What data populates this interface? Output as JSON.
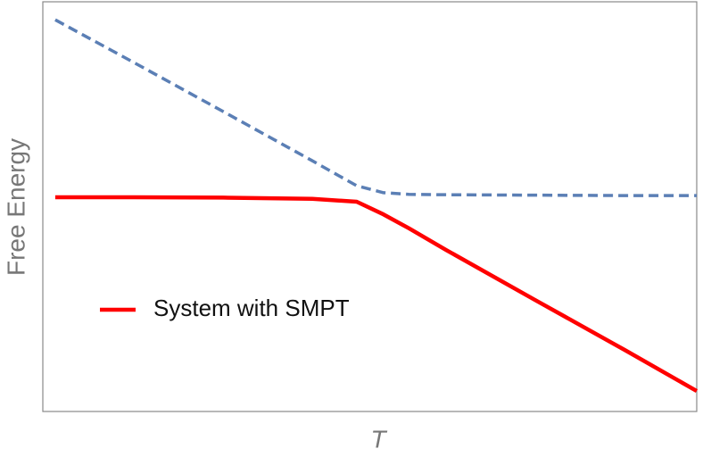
{
  "chart_data": {
    "type": "line",
    "xlabel": "T",
    "ylabel": "Free Energy",
    "x": [
      0.19,
      1.39,
      2.76,
      4.12,
      4.8,
      5.21,
      5.6,
      6.17,
      7.53,
      8.9,
      10
    ],
    "xlim": [
      0,
      10
    ],
    "ylim": [
      0,
      10
    ],
    "series": [
      {
        "color": "#5b7fb5",
        "dash": true,
        "values": [
          9.56,
          8.52,
          7.32,
          6.12,
          5.51,
          5.34,
          5.3,
          5.29,
          5.28,
          5.27,
          5.27
        ]
      },
      {
        "name": "System with SMPT",
        "color": "#ff0000",
        "values": [
          5.23,
          5.23,
          5.22,
          5.19,
          5.12,
          4.81,
          4.47,
          3.94,
          2.72,
          1.5,
          0.5
        ]
      }
    ]
  }
}
